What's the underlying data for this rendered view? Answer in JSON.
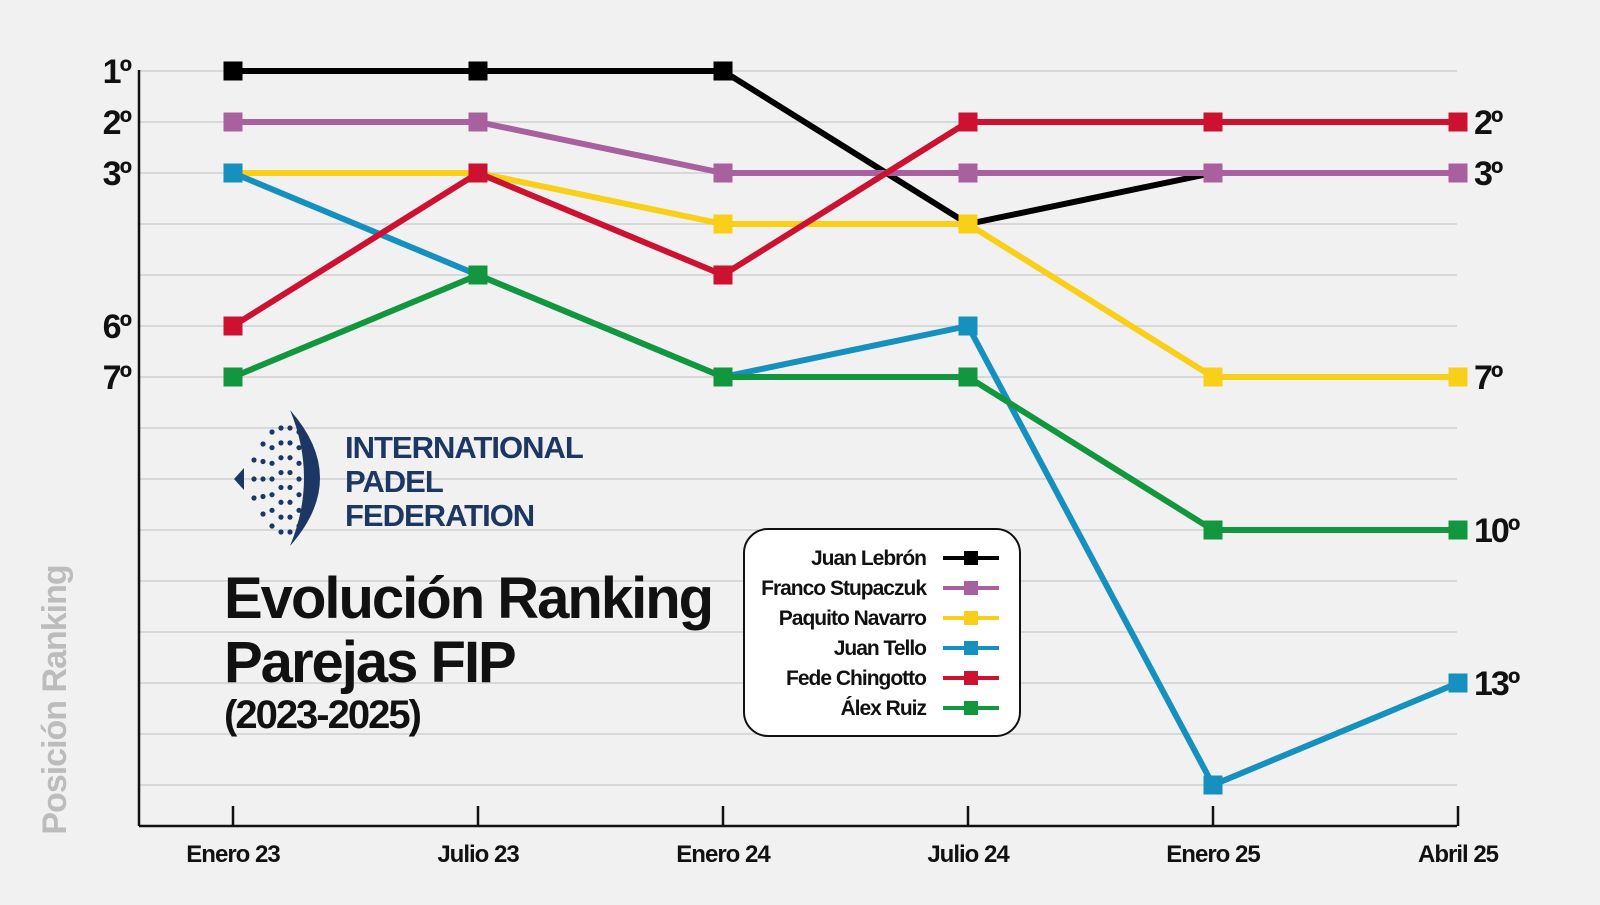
{
  "chart_data": {
    "type": "line",
    "title": "Evolución Ranking",
    "title_line2": "Parejas FIP",
    "subtitle": "(2023-2025)",
    "ylabel": "Posición Ranking",
    "xlabel": "",
    "y_reversed": true,
    "ylim": [
      1,
      15
    ],
    "grid": true,
    "legend_position": "center-bottom",
    "categories": [
      "Enero 23",
      "Julio 23",
      "Enero 24",
      "Julio 24",
      "Enero 25",
      "Abril 25"
    ],
    "y_tick_labels": [
      {
        "value": 1,
        "label": "1º"
      },
      {
        "value": 2,
        "label": "2º"
      },
      {
        "value": 3,
        "label": "3º"
      },
      {
        "value": 6,
        "label": "6º"
      },
      {
        "value": 7,
        "label": "7º"
      }
    ],
    "series": [
      {
        "name": "Juan Lebrón",
        "color": "#000000",
        "values": [
          1,
          1,
          1,
          4,
          3,
          3
        ]
      },
      {
        "name": "Franco Stupaczuk",
        "color": "#a8619e",
        "values": [
          2,
          2,
          3,
          3,
          3,
          3
        ]
      },
      {
        "name": "Paquito Navarro",
        "color": "#f9cf1a",
        "values": [
          3,
          3,
          4,
          4,
          7,
          7
        ]
      },
      {
        "name": "Juan Tello",
        "color": "#1590bf",
        "values": [
          3,
          5,
          7,
          6,
          15,
          13
        ]
      },
      {
        "name": "Fede Chingotto",
        "color": "#cc1131",
        "values": [
          6,
          3,
          5,
          2,
          2,
          2
        ]
      },
      {
        "name": "Álex Ruiz",
        "color": "#13973e",
        "values": [
          7,
          5,
          7,
          7,
          10,
          10
        ]
      }
    ],
    "end_labels": [
      {
        "value": 2,
        "label": "2º"
      },
      {
        "value": 3,
        "label": "3º"
      },
      {
        "value": 7,
        "label": "7º"
      },
      {
        "value": 10,
        "label": "10º"
      },
      {
        "value": 13,
        "label": "13º"
      }
    ]
  },
  "logo": {
    "line1": "INTERNATIONAL",
    "line2": "PADEL",
    "line3": "FEDERATION",
    "color": "#1d3764"
  },
  "colors": {
    "background": "#f1f1f1",
    "grid": "#cfcfcf",
    "axis": "#111111"
  }
}
